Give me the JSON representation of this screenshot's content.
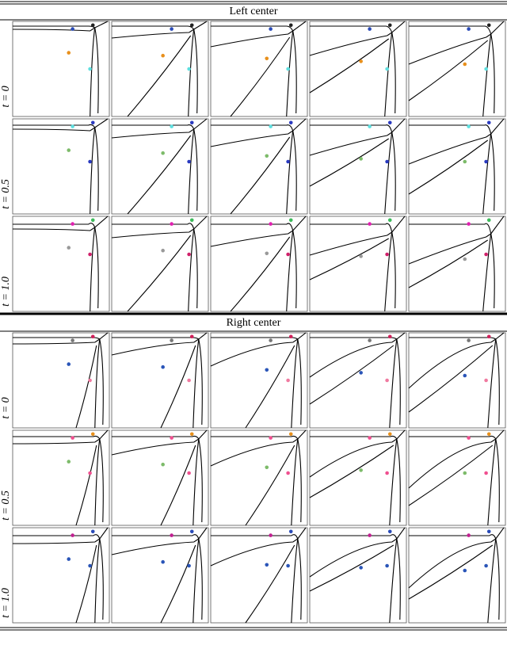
{
  "sections": [
    {
      "title": "Left center",
      "rows": [
        {
          "label": "t = 0"
        },
        {
          "label": "t = 0.5"
        },
        {
          "label": "t = 1.0"
        }
      ]
    },
    {
      "title": "Right center",
      "rows": [
        {
          "label": "t = 0"
        },
        {
          "label": "t = 0.5"
        },
        {
          "label": "t = 1.0"
        }
      ]
    }
  ]
}
